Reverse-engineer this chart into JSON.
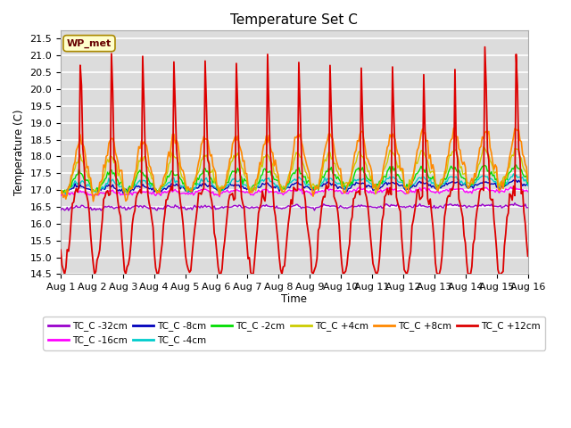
{
  "title": "Temperature Set C",
  "xlabel": "Time",
  "ylabel": "Temperature (C)",
  "ylim": [
    14.5,
    21.75
  ],
  "background_color": "#dcdcdc",
  "figure_color": "#ffffff",
  "grid_color": "#ffffff",
  "xtick_labels": [
    "Aug 1",
    "Aug 2",
    "Aug 3",
    "Aug 4",
    "Aug 5",
    "Aug 6",
    "Aug 7",
    "Aug 8",
    "Aug 9",
    "Aug 10",
    "Aug 11",
    "Aug 12",
    "Aug 13",
    "Aug 14",
    "Aug 15",
    "Aug 16"
  ],
  "colors": {
    "TC_C -32cm": "#9900cc",
    "TC_C -16cm": "#ff00ff",
    "TC_C -8cm": "#0000bb",
    "TC_C -4cm": "#00cccc",
    "TC_C -2cm": "#00dd00",
    "TC_C +4cm": "#cccc00",
    "TC_C +8cm": "#ff8800",
    "TC_C +12cm": "#dd0000"
  },
  "legend_box_color": "#ffffcc",
  "legend_box_text": "WP_met",
  "legend_box_text_color": "#660000"
}
